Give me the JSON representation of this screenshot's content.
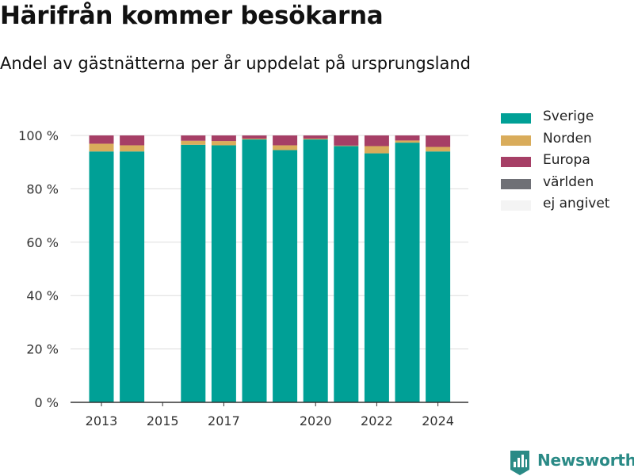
{
  "title": "Härifrån kommer besökarna",
  "subtitle": "Andel av gästnätterna per år uppdelat på ursprungsland",
  "brand": {
    "name": "Newsworthy"
  },
  "chart_data": {
    "type": "bar",
    "stacked": true,
    "categories": [
      2013,
      2014,
      2015,
      2016,
      2017,
      2018,
      2019,
      2020,
      2021,
      2022,
      2023,
      2024
    ],
    "xtick_labels": [
      2013,
      2015,
      2017,
      2020,
      2022,
      2024
    ],
    "ytick_values": [
      0,
      20,
      40,
      60,
      80,
      100
    ],
    "ytick_suffix": " %",
    "ylim": [
      0,
      100
    ],
    "grid": true,
    "legend_position": "right",
    "series": [
      {
        "name": "Sverige",
        "color": "#00a096",
        "values": [
          94,
          94,
          null,
          96.5,
          96.3,
          98.5,
          94.5,
          98.5,
          96,
          93.3,
          97.3,
          94
        ]
      },
      {
        "name": "Norden",
        "color": "#d9ac5b",
        "values": [
          2.9,
          2.3,
          null,
          1.5,
          1.6,
          0.3,
          1.8,
          0.3,
          0.2,
          2.7,
          0.8,
          1.7
        ]
      },
      {
        "name": "Europa",
        "color": "#a63f66",
        "values": [
          3.1,
          3.7,
          null,
          2.0,
          2.1,
          1.2,
          3.7,
          1.2,
          3.8,
          4.0,
          1.9,
          4.3
        ]
      },
      {
        "name": "världen",
        "color": "#6f7076",
        "values": [
          0,
          0,
          null,
          0,
          0,
          0,
          0,
          0,
          0,
          0,
          0,
          0
        ]
      },
      {
        "name": "ej angivet",
        "color": "#f4f4f4",
        "values": [
          0,
          0,
          null,
          0,
          0,
          0,
          0,
          0,
          0,
          0,
          0,
          0
        ]
      }
    ]
  }
}
